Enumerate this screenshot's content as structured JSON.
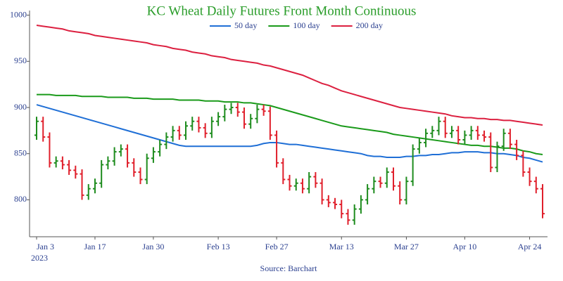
{
  "chart_data": {
    "type": "ohlc",
    "title": "KC Wheat Daily Futures Front Month Continuous",
    "source": "Source: Barchart",
    "x_year_label": "2023",
    "x": [
      "2023-01-03",
      "2023-01-04",
      "2023-01-05",
      "2023-01-06",
      "2023-01-09",
      "2023-01-10",
      "2023-01-11",
      "2023-01-12",
      "2023-01-13",
      "2023-01-17",
      "2023-01-18",
      "2023-01-19",
      "2023-01-20",
      "2023-01-23",
      "2023-01-24",
      "2023-01-25",
      "2023-01-26",
      "2023-01-27",
      "2023-01-30",
      "2023-01-31",
      "2023-02-01",
      "2023-02-02",
      "2023-02-03",
      "2023-02-06",
      "2023-02-07",
      "2023-02-08",
      "2023-02-09",
      "2023-02-10",
      "2023-02-13",
      "2023-02-14",
      "2023-02-15",
      "2023-02-16",
      "2023-02-17",
      "2023-02-21",
      "2023-02-22",
      "2023-02-23",
      "2023-02-24",
      "2023-02-27",
      "2023-02-28",
      "2023-03-01",
      "2023-03-02",
      "2023-03-03",
      "2023-03-06",
      "2023-03-07",
      "2023-03-08",
      "2023-03-09",
      "2023-03-10",
      "2023-03-13",
      "2023-03-14",
      "2023-03-15",
      "2023-03-16",
      "2023-03-17",
      "2023-03-20",
      "2023-03-21",
      "2023-03-22",
      "2023-03-23",
      "2023-03-24",
      "2023-03-27",
      "2023-03-28",
      "2023-03-29",
      "2023-03-30",
      "2023-03-31",
      "2023-04-03",
      "2023-04-04",
      "2023-04-05",
      "2023-04-06",
      "2023-04-10",
      "2023-04-11",
      "2023-04-12",
      "2023-04-13",
      "2023-04-14",
      "2023-04-17",
      "2023-04-18",
      "2023-04-19",
      "2023-04-20",
      "2023-04-21",
      "2023-04-24",
      "2023-04-25",
      "2023-04-26"
    ],
    "open": [
      870,
      885,
      868,
      840,
      842,
      838,
      832,
      828,
      805,
      812,
      818,
      838,
      842,
      852,
      855,
      840,
      830,
      822,
      845,
      852,
      860,
      868,
      875,
      870,
      880,
      885,
      878,
      872,
      885,
      890,
      898,
      900,
      895,
      882,
      888,
      898,
      896,
      870,
      840,
      822,
      815,
      818,
      812,
      825,
      818,
      800,
      797,
      795,
      785,
      778,
      790,
      800,
      812,
      820,
      818,
      830,
      815,
      800,
      820,
      855,
      862,
      872,
      875,
      885,
      872,
      875,
      865,
      870,
      875,
      870,
      868,
      835,
      858,
      872,
      860,
      848,
      830,
      820,
      812
    ],
    "high": [
      890,
      890,
      873,
      847,
      847,
      843,
      837,
      833,
      817,
      823,
      843,
      847,
      857,
      860,
      860,
      845,
      835,
      850,
      857,
      865,
      873,
      880,
      880,
      885,
      890,
      890,
      883,
      890,
      895,
      903,
      905,
      905,
      900,
      893,
      903,
      903,
      901,
      875,
      845,
      827,
      823,
      823,
      830,
      830,
      823,
      805,
      802,
      800,
      790,
      795,
      805,
      817,
      825,
      825,
      835,
      835,
      820,
      825,
      860,
      867,
      877,
      880,
      890,
      890,
      880,
      880,
      875,
      880,
      880,
      875,
      873,
      863,
      877,
      877,
      865,
      853,
      835,
      825,
      817
    ],
    "low": [
      865,
      863,
      835,
      835,
      833,
      827,
      823,
      800,
      800,
      807,
      813,
      833,
      837,
      847,
      835,
      825,
      817,
      817,
      840,
      847,
      855,
      863,
      865,
      865,
      875,
      873,
      867,
      867,
      880,
      885,
      893,
      890,
      877,
      877,
      883,
      891,
      865,
      835,
      817,
      810,
      810,
      807,
      807,
      813,
      795,
      792,
      790,
      780,
      773,
      773,
      785,
      795,
      807,
      813,
      813,
      810,
      795,
      795,
      815,
      850,
      857,
      867,
      870,
      867,
      867,
      860,
      860,
      865,
      865,
      863,
      830,
      830,
      853,
      855,
      843,
      825,
      815,
      807,
      780
    ],
    "close": [
      885,
      868,
      840,
      842,
      838,
      832,
      828,
      805,
      812,
      818,
      838,
      842,
      852,
      855,
      840,
      830,
      822,
      845,
      852,
      860,
      868,
      875,
      870,
      880,
      885,
      878,
      872,
      885,
      890,
      898,
      900,
      895,
      882,
      888,
      898,
      896,
      870,
      840,
      822,
      815,
      818,
      812,
      825,
      818,
      800,
      797,
      795,
      785,
      778,
      790,
      800,
      812,
      820,
      818,
      830,
      815,
      800,
      820,
      855,
      862,
      872,
      875,
      885,
      872,
      875,
      865,
      870,
      875,
      870,
      868,
      835,
      858,
      872,
      860,
      848,
      830,
      820,
      812,
      785
    ],
    "up_color": "#1e8c1e",
    "down_color": "#e0202c",
    "series": [
      {
        "name": "50 day",
        "color": "#1f6fd6",
        "values": [
          903,
          901,
          899,
          897,
          895,
          893,
          891,
          889,
          887,
          885,
          883,
          881,
          879,
          877,
          875,
          873,
          871,
          869,
          867,
          865,
          863,
          861,
          859,
          858,
          858,
          858,
          858,
          858,
          858,
          858,
          858,
          858,
          858,
          858,
          859,
          861,
          862,
          862,
          861,
          860,
          860,
          859,
          858,
          857,
          856,
          855,
          854,
          853,
          852,
          851,
          850,
          848,
          847,
          847,
          846,
          846,
          846,
          847,
          847,
          848,
          848,
          849,
          849,
          850,
          851,
          851,
          852,
          852,
          852,
          851,
          851,
          850,
          850,
          849,
          848,
          846,
          845,
          843,
          841
        ]
      },
      {
        "name": "100 day",
        "color": "#1a9a1a",
        "values": [
          914,
          914,
          914,
          913,
          913,
          913,
          913,
          912,
          912,
          912,
          912,
          911,
          911,
          911,
          911,
          910,
          910,
          910,
          909,
          909,
          909,
          909,
          908,
          908,
          908,
          908,
          907,
          907,
          907,
          906,
          906,
          906,
          905,
          905,
          904,
          903,
          902,
          900,
          898,
          896,
          894,
          892,
          890,
          888,
          886,
          884,
          882,
          880,
          879,
          878,
          877,
          876,
          875,
          874,
          873,
          871,
          870,
          869,
          868,
          867,
          866,
          865,
          864,
          863,
          862,
          861,
          860,
          859,
          859,
          858,
          858,
          857,
          856,
          856,
          855,
          853,
          852,
          850,
          849
        ]
      },
      {
        "name": "200 day",
        "color": "#dc2040",
        "values": [
          989,
          988,
          987,
          986,
          985,
          983,
          982,
          981,
          980,
          978,
          977,
          976,
          975,
          974,
          973,
          972,
          971,
          970,
          968,
          967,
          966,
          964,
          963,
          962,
          960,
          959,
          958,
          956,
          955,
          954,
          952,
          951,
          950,
          949,
          948,
          946,
          945,
          943,
          941,
          939,
          937,
          935,
          932,
          929,
          926,
          924,
          921,
          918,
          916,
          914,
          912,
          910,
          908,
          906,
          904,
          902,
          900,
          899,
          898,
          897,
          896,
          895,
          894,
          893,
          891,
          890,
          889,
          889,
          888,
          888,
          887,
          887,
          886,
          886,
          885,
          884,
          883,
          882,
          881
        ]
      }
    ],
    "ylim": [
      760,
      1005
    ],
    "yticks": [
      800,
      850,
      900,
      950,
      1000
    ],
    "xticks": [
      {
        "value": "2023-01-03",
        "label": "Jan 3"
      },
      {
        "value": "2023-01-17",
        "label": "Jan 17"
      },
      {
        "value": "2023-01-30",
        "label": "Jan 30"
      },
      {
        "value": "2023-02-13",
        "label": "Feb 13"
      },
      {
        "value": "2023-02-27",
        "label": "Feb 27"
      },
      {
        "value": "2023-03-13",
        "label": "Mar 13"
      },
      {
        "value": "2023-03-27",
        "label": "Mar 27"
      },
      {
        "value": "2023-04-10",
        "label": "Apr 10"
      },
      {
        "value": "2023-04-24",
        "label": "Apr 24"
      }
    ],
    "legend": "top"
  }
}
